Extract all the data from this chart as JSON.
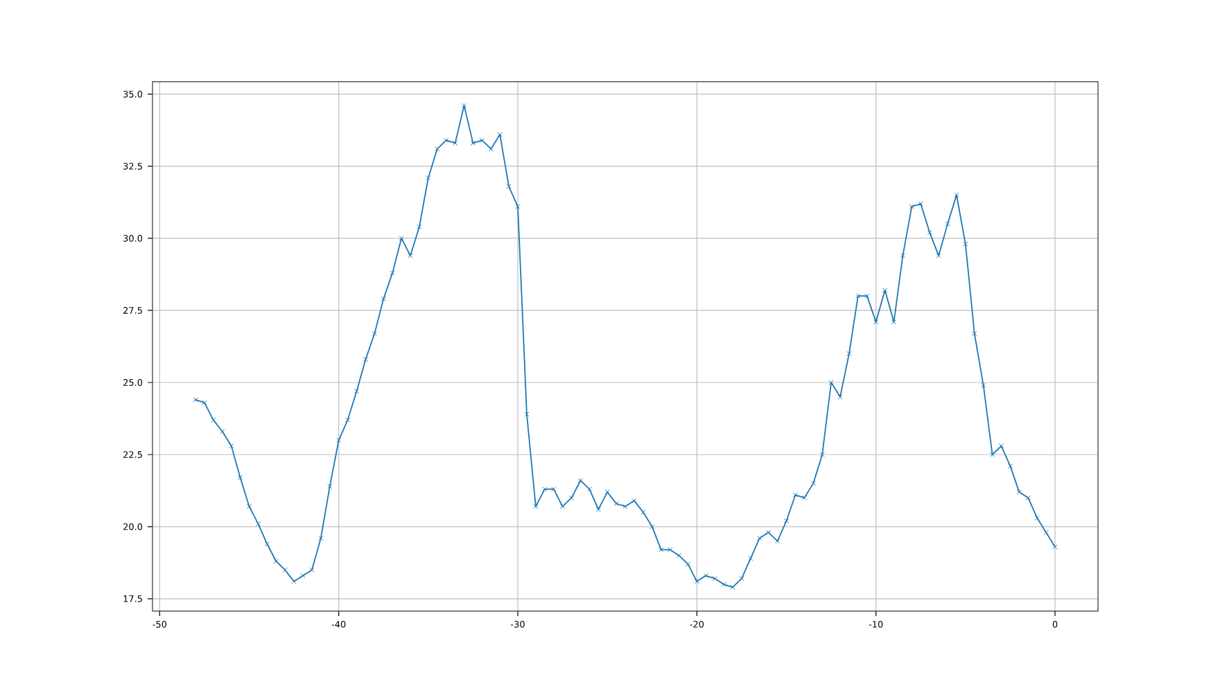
{
  "chart_data": {
    "type": "line",
    "color": "#1f77b4",
    "marker": "cross",
    "line_style": "solid",
    "grid": true,
    "x": [
      -48,
      -47.5,
      -47,
      -46.5,
      -46,
      -45.5,
      -45,
      -44.5,
      -44,
      -43.5,
      -43,
      -42.5,
      -42,
      -41.5,
      -41,
      -40.5,
      -40,
      -39.5,
      -39,
      -38.5,
      -38,
      -37.5,
      -37,
      -36.5,
      -36,
      -35.5,
      -35,
      -34.5,
      -34,
      -33.5,
      -33,
      -32.5,
      -32,
      -31.5,
      -31,
      -30.5,
      -30,
      -29.5,
      -29,
      -28.5,
      -28,
      -27.5,
      -27,
      -26.5,
      -26,
      -25.5,
      -25,
      -24.5,
      -24,
      -23.5,
      -23,
      -22.5,
      -22,
      -21.5,
      -21,
      -20.5,
      -20,
      -19.5,
      -19,
      -18.5,
      -18,
      -17.5,
      -17,
      -16.5,
      -16,
      -15.5,
      -15,
      -14.5,
      -14,
      -13.5,
      -13,
      -12.5,
      -12,
      -11.5,
      -11,
      -10.5,
      -10,
      -9.5,
      -9,
      -8.5,
      -8,
      -7.5,
      -7,
      -6.5,
      -6,
      -5.5,
      -5,
      -4.5,
      -4,
      -3.5,
      -3,
      -2.5,
      -2,
      -1.5,
      -1,
      -0.5,
      0
    ],
    "values": [
      24.4,
      24.3,
      23.7,
      23.3,
      22.8,
      21.7,
      20.7,
      20.1,
      19.4,
      18.8,
      18.5,
      18.1,
      18.3,
      18.5,
      19.6,
      21.4,
      23.0,
      23.7,
      24.7,
      25.8,
      26.7,
      27.9,
      28.8,
      30.0,
      29.4,
      30.4,
      32.1,
      33.1,
      33.4,
      33.3,
      34.6,
      33.3,
      33.4,
      33.1,
      33.6,
      31.8,
      31.1,
      23.9,
      20.7,
      21.3,
      21.3,
      20.7,
      21.0,
      21.6,
      21.3,
      20.6,
      21.2,
      20.8,
      20.7,
      20.9,
      20.5,
      20.0,
      19.2,
      19.2,
      19.0,
      18.7,
      18.1,
      18.3,
      18.2,
      18.0,
      17.9,
      18.2,
      18.9,
      19.6,
      19.8,
      19.5,
      20.2,
      21.1,
      21.0,
      21.5,
      22.5,
      25.0,
      24.5,
      26.0,
      28.0,
      28.0,
      27.1,
      28.2,
      27.1,
      29.4,
      31.1,
      31.2,
      30.2,
      29.4,
      30.5,
      31.5,
      29.8,
      26.7,
      24.9,
      22.5,
      22.8,
      22.1,
      21.2,
      21.0,
      20.3,
      19.8,
      19.3
    ],
    "xlim": [
      -50.4,
      2.4
    ],
    "ylim": [
      17.07,
      35.43
    ],
    "xticks": [
      -50,
      -40,
      -30,
      -20,
      -10,
      0
    ],
    "yticks": [
      {
        "value": 17.5,
        "label": "17.5"
      },
      {
        "value": 20,
        "label": "20.0"
      },
      {
        "value": 22.5,
        "label": "22.5"
      },
      {
        "value": 25,
        "label": "25.0"
      },
      {
        "value": 27.5,
        "label": "27.5"
      },
      {
        "value": 30,
        "label": "30.0"
      },
      {
        "value": 32.5,
        "label": "32.5"
      },
      {
        "value": 35,
        "label": "35.0"
      }
    ]
  }
}
